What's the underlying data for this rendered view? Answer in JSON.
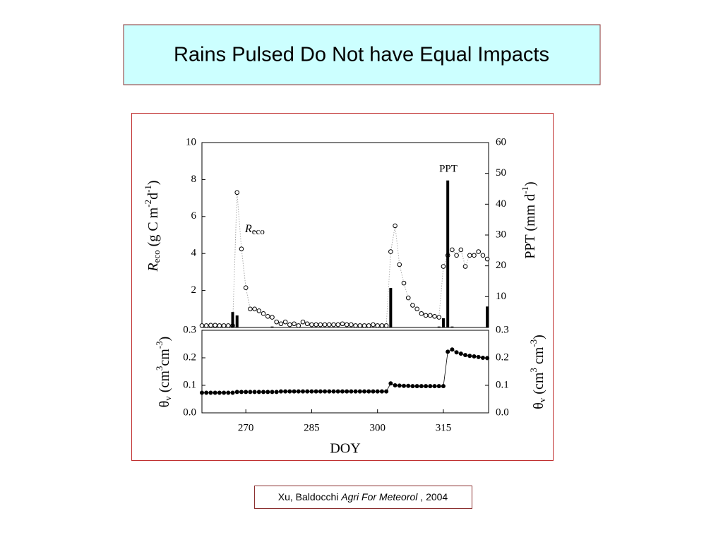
{
  "title": "Rains Pulsed Do Not have Equal Impacts",
  "citation": {
    "authors": "Xu, Baldocchi",
    "journal": "Agri For Meteorol",
    "year": ", 2004"
  },
  "chart_data": [
    {
      "type": "combo",
      "y_label": [
        "R",
        "eco",
        " (g C m",
        "-2",
        "d",
        "-1",
        ")"
      ],
      "y2_label": [
        "PPT (mm d",
        "-1",
        ")"
      ],
      "xlim": [
        260,
        325.3
      ],
      "ylim": [
        0,
        10
      ],
      "yticks": [
        2,
        4,
        6,
        8,
        10
      ],
      "y2lim": [
        0,
        60
      ],
      "y2ticks": [
        10,
        20,
        30,
        40,
        50,
        60
      ],
      "annotations": [
        {
          "text": "PPT"
        },
        {
          "text": [
            "R",
            "eco"
          ]
        }
      ],
      "series": [
        {
          "name": "Reco",
          "type": "scatter",
          "color": "#000000",
          "x": [
            260,
            261,
            262,
            263,
            264,
            265,
            266,
            267,
            268,
            269,
            270,
            271,
            272,
            273,
            274,
            275,
            276,
            277,
            278,
            279,
            280,
            281,
            282,
            283,
            284,
            285,
            286,
            287,
            288,
            289,
            290,
            291,
            292,
            293,
            294,
            295,
            296,
            297,
            298,
            299,
            300,
            301,
            302,
            303,
            304,
            305,
            306,
            307,
            308,
            309,
            310,
            311,
            312,
            313,
            314,
            315,
            316,
            317,
            318,
            319,
            320,
            321,
            322,
            323,
            324,
            325
          ],
          "values": [
            0.1,
            0.1,
            0.12,
            0.12,
            0.1,
            0.1,
            0.1,
            0.1,
            7.3,
            4.25,
            2.15,
            1.0,
            1.0,
            0.9,
            0.75,
            0.6,
            0.55,
            0.3,
            0.2,
            0.3,
            0.15,
            0.2,
            0.1,
            0.3,
            0.2,
            0.15,
            0.15,
            0.15,
            0.15,
            0.15,
            0.15,
            0.15,
            0.2,
            0.15,
            0.15,
            0.1,
            0.1,
            0.1,
            0.1,
            0.15,
            0.1,
            0.1,
            0.1,
            4.1,
            5.5,
            3.4,
            2.4,
            1.6,
            1.2,
            1.0,
            0.75,
            0.65,
            0.65,
            0.6,
            0.55,
            3.3,
            3.9,
            4.2,
            3.9,
            4.2,
            3.3,
            3.9,
            3.9,
            4.1,
            3.9,
            3.7
          ]
        },
        {
          "name": "PPT",
          "type": "bar",
          "axis": "y2",
          "color": "#000000",
          "x": [
            267,
            268,
            276,
            303,
            314,
            315,
            316,
            317,
            325
          ],
          "values": [
            5,
            3.9,
            0.3,
            12.8,
            0.3,
            3,
            47.7,
            0.3,
            6.8
          ]
        }
      ]
    },
    {
      "type": "line",
      "x_label": "DOY",
      "y_label": [
        "θ",
        "v",
        " (cm",
        "3",
        "cm",
        "-3",
        ")"
      ],
      "y2_label": [
        "θ",
        "v",
        " (cm",
        "3",
        " cm",
        "-3",
        ")"
      ],
      "xlim": [
        260,
        325.3
      ],
      "xticks": [
        270,
        285,
        300,
        315
      ],
      "ylim": [
        0,
        0.3
      ],
      "yticks": [
        {
          "value": 0,
          "label": "0.0"
        },
        0.1,
        0.2,
        0.3
      ],
      "y2lim": [
        0,
        0.3
      ],
      "y2ticks": [
        {
          "value": 0,
          "label": "0.0"
        },
        0.1,
        0.2,
        0.3
      ],
      "series": [
        {
          "name": "θv",
          "color": "#000000",
          "x": [
            260,
            261,
            262,
            263,
            264,
            265,
            266,
            267,
            268,
            269,
            270,
            271,
            272,
            273,
            274,
            275,
            276,
            277,
            278,
            279,
            280,
            281,
            282,
            283,
            284,
            285,
            286,
            287,
            288,
            289,
            290,
            291,
            292,
            293,
            294,
            295,
            296,
            297,
            298,
            299,
            300,
            301,
            302,
            303,
            304,
            305,
            306,
            307,
            308,
            309,
            310,
            311,
            312,
            313,
            314,
            315,
            316,
            317,
            318,
            319,
            320,
            321,
            322,
            323,
            324,
            325
          ],
          "values": [
            0.073,
            0.073,
            0.073,
            0.073,
            0.073,
            0.073,
            0.073,
            0.073,
            0.076,
            0.076,
            0.076,
            0.076,
            0.076,
            0.076,
            0.076,
            0.076,
            0.076,
            0.076,
            0.078,
            0.078,
            0.078,
            0.078,
            0.078,
            0.078,
            0.078,
            0.078,
            0.078,
            0.078,
            0.078,
            0.078,
            0.078,
            0.078,
            0.078,
            0.078,
            0.078,
            0.078,
            0.078,
            0.078,
            0.078,
            0.078,
            0.078,
            0.078,
            0.078,
            0.107,
            0.1,
            0.099,
            0.098,
            0.098,
            0.097,
            0.097,
            0.097,
            0.097,
            0.097,
            0.097,
            0.097,
            0.097,
            0.222,
            0.23,
            0.22,
            0.215,
            0.21,
            0.207,
            0.205,
            0.203,
            0.2,
            0.199
          ]
        }
      ]
    }
  ]
}
